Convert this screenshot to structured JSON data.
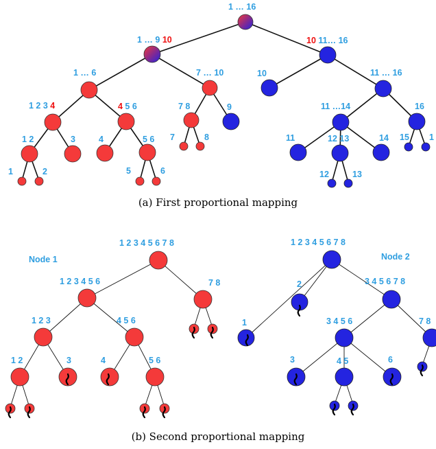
{
  "colors": {
    "red": "#f43a3a",
    "blue": "#2424e0",
    "label": "#2f9ee0",
    "highlight": "#ee1111",
    "edge": "#111111",
    "caption": "#000000"
  },
  "figure_a": {
    "caption": "(a)  First proportional mapping",
    "nodes": [
      {
        "id": "a_root",
        "color": "mix",
        "label": "1 … 16"
      },
      {
        "id": "a_l",
        "color": "mix",
        "label_pre": "1 … 9 ",
        "label_hl": "10"
      },
      {
        "id": "a_r",
        "color": "blue",
        "label_hl": "10",
        "label_post": " 11… 16"
      },
      {
        "id": "a_ll",
        "color": "red",
        "label": "1 … 6"
      },
      {
        "id": "a_lr",
        "color": "red",
        "label": "7 … 10"
      },
      {
        "id": "a_rl",
        "color": "blue",
        "label": "10"
      },
      {
        "id": "a_rr",
        "color": "blue",
        "label": "11 … 16"
      },
      {
        "id": "a_lll",
        "color": "red",
        "label_pre": "1 2 3 ",
        "label_hl": "4"
      },
      {
        "id": "a_llr",
        "color": "red",
        "label_hl": "4",
        "label_post": " 5 6"
      },
      {
        "id": "a_lrl",
        "color": "red",
        "label": "7 8"
      },
      {
        "id": "a_lrr",
        "color": "blue",
        "label": "9"
      },
      {
        "id": "a_rrl",
        "color": "blue",
        "label": "11 …14"
      },
      {
        "id": "a_rrr",
        "color": "blue",
        "label": "16"
      },
      {
        "id": "a_l4a",
        "color": "red",
        "label": "1 2"
      },
      {
        "id": "a_l4b",
        "color": "red",
        "label": "3"
      },
      {
        "id": "a_l4c",
        "color": "red",
        "label": "4"
      },
      {
        "id": "a_l4d",
        "color": "red",
        "label": "5 6"
      },
      {
        "id": "a_l78a",
        "color": "red",
        "label": "7"
      },
      {
        "id": "a_l78b",
        "color": "red",
        "label": "8"
      },
      {
        "id": "a_r11",
        "color": "blue",
        "label": "11"
      },
      {
        "id": "a_r1213",
        "color": "blue",
        "label": "12 13"
      },
      {
        "id": "a_r14",
        "color": "blue",
        "label": "14"
      },
      {
        "id": "a_r15",
        "color": "blue",
        "label": "15"
      },
      {
        "id": "a_r16b",
        "color": "blue",
        "label": "1"
      },
      {
        "id": "a_leaf1",
        "color": "red",
        "label": "1"
      },
      {
        "id": "a_leaf2",
        "color": "red",
        "label": "2"
      },
      {
        "id": "a_leaf5",
        "color": "red",
        "label": "5"
      },
      {
        "id": "a_leaf6",
        "color": "red",
        "label": "6"
      },
      {
        "id": "a_leaf12",
        "color": "blue",
        "label": "12"
      },
      {
        "id": "a_leaf13",
        "color": "blue",
        "label": "13"
      }
    ]
  },
  "figure_b": {
    "caption": "(b)  Second proportional mapping",
    "node1_title": "Node 1",
    "node2_title": "Node 2",
    "nodes": [
      {
        "id": "b1_root",
        "color": "red",
        "label": "1 2 3 4 5 6 7 8"
      },
      {
        "id": "b1_l",
        "color": "red",
        "label": "1 2 3 4 5 6"
      },
      {
        "id": "b1_r",
        "color": "red",
        "label": "7 8"
      },
      {
        "id": "b1_ll",
        "color": "red",
        "label": "1 2 3"
      },
      {
        "id": "b1_lr",
        "color": "red",
        "label": "4 5 6"
      },
      {
        "id": "b1_l3a",
        "color": "red",
        "label": "1 2"
      },
      {
        "id": "b1_l3b",
        "color": "red",
        "label": "3"
      },
      {
        "id": "b1_l3c",
        "color": "red",
        "label": "4"
      },
      {
        "id": "b1_l3d",
        "color": "red",
        "label": "5 6"
      },
      {
        "id": "b2_root",
        "color": "blue",
        "label": "1 2 3 4 5 6 7 8"
      },
      {
        "id": "b2_a",
        "color": "blue",
        "label": "1"
      },
      {
        "id": "b2_b",
        "color": "blue",
        "label": "2"
      },
      {
        "id": "b2_c",
        "color": "blue",
        "label": "3 4 5 6 7 8"
      },
      {
        "id": "b2_d",
        "color": "blue",
        "label": "3 4 5 6"
      },
      {
        "id": "b2_e",
        "color": "blue",
        "label": "7 8"
      },
      {
        "id": "b2_f",
        "color": "blue",
        "label": "3"
      },
      {
        "id": "b2_g",
        "color": "blue",
        "label": "4 5"
      },
      {
        "id": "b2_h",
        "color": "blue",
        "label": "6"
      }
    ]
  }
}
